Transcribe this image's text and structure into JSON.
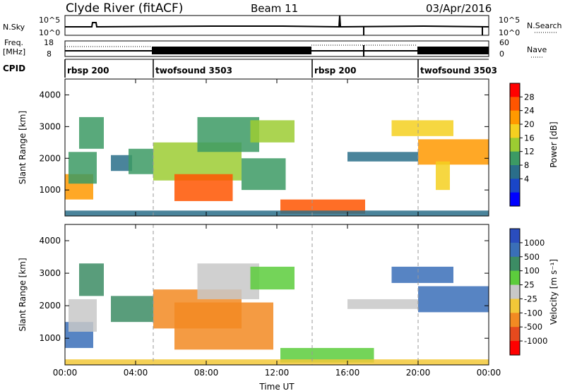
{
  "header": {
    "station": "Clyde River (fitACF)",
    "beam": "Beam 11",
    "date": "03/Apr/2016"
  },
  "strips": {
    "nsky_label": "N.Sky",
    "nsky_ticks": [
      "10^5",
      "10^0"
    ],
    "nsearch_label": "N.Search",
    "nsearch_ticks": [
      "10^5",
      "10^0"
    ],
    "freq_label": "Freq.",
    "freq_unit": "[MHz]",
    "freq_ticks": [
      "18",
      "8"
    ],
    "nave_label": "Nave",
    "nave_ticks": [
      "60",
      "0"
    ],
    "cpid_label": "CPID",
    "cpid_segments": [
      {
        "start_h": 0,
        "end_h": 5,
        "label": "rbsp 200"
      },
      {
        "start_h": 5,
        "end_h": 14,
        "label": "twofsound 3503"
      },
      {
        "start_h": 14,
        "end_h": 20,
        "label": "rbsp 200"
      },
      {
        "start_h": 20,
        "end_h": 24,
        "label": "twofsound 3503"
      }
    ]
  },
  "chart_data": [
    {
      "type": "heatmap",
      "panel": "power",
      "ylabel": "Slant Range [km]",
      "y_ticks": [
        "4000",
        "3000",
        "2000",
        "1000"
      ],
      "ylim": [
        180,
        4500
      ],
      "xlim_h": [
        0,
        24
      ],
      "colorbar_label": "Power [dB]",
      "colorbar_ticks": [
        "28",
        "24",
        "20",
        "16",
        "12",
        "8",
        "4"
      ],
      "colorbar_colors": [
        "#ff0000",
        "#ff5500",
        "#ff9900",
        "#f5d020",
        "#9ccc32",
        "#3c9a64",
        "#2a6e8a",
        "#1a46c8",
        "#0000ff"
      ],
      "grid": "vertical dashed lines at CPID changes",
      "cells": [
        {
          "h0": 0.0,
          "h1": 1.6,
          "r0": 700,
          "r1": 1500,
          "value": 24
        },
        {
          "h0": 0.2,
          "h1": 1.8,
          "r0": 1200,
          "r1": 2200,
          "value": 12
        },
        {
          "h0": 0.8,
          "h1": 2.2,
          "r0": 2300,
          "r1": 3300,
          "value": 10
        },
        {
          "h0": 2.6,
          "h1": 3.8,
          "r0": 1600,
          "r1": 2100,
          "value": 9
        },
        {
          "h0": 3.6,
          "h1": 5.0,
          "r0": 1500,
          "r1": 2300,
          "value": 10
        },
        {
          "h0": 5.0,
          "h1": 10.0,
          "r0": 1300,
          "r1": 2500,
          "value": 14
        },
        {
          "h0": 6.2,
          "h1": 9.5,
          "r0": 650,
          "r1": 1500,
          "value": 26
        },
        {
          "h0": 7.5,
          "h1": 11.0,
          "r0": 2200,
          "r1": 3300,
          "value": 10
        },
        {
          "h0": 10.0,
          "h1": 12.5,
          "r0": 1000,
          "r1": 2000,
          "value": 12
        },
        {
          "h0": 10.5,
          "h1": 13.0,
          "r0": 2500,
          "r1": 3200,
          "value": 14
        },
        {
          "h0": 12.2,
          "h1": 17.0,
          "r0": 250,
          "r1": 700,
          "value": 26
        },
        {
          "h0": 16.0,
          "h1": 20.0,
          "r0": 1900,
          "r1": 2200,
          "value": 6
        },
        {
          "h0": 18.5,
          "h1": 22.0,
          "r0": 2700,
          "r1": 3200,
          "value": 18
        },
        {
          "h0": 20.0,
          "h1": 24.0,
          "r0": 1800,
          "r1": 2600,
          "value": 22
        },
        {
          "h0": 21.0,
          "h1": 21.8,
          "r0": 1000,
          "r1": 1900,
          "value": 18
        },
        {
          "h0": 0.0,
          "h1": 24.0,
          "r0": 180,
          "r1": 350,
          "value": 8
        }
      ]
    },
    {
      "type": "heatmap",
      "panel": "velocity",
      "ylabel": "Slant Range [km]",
      "y_ticks": [
        "4000",
        "3000",
        "2000",
        "1000"
      ],
      "ylim": [
        180,
        4500
      ],
      "xlim_h": [
        0,
        24
      ],
      "x_ticks": [
        "00:00",
        "04:00",
        "08:00",
        "12:00",
        "16:00",
        "20:00",
        "00:00"
      ],
      "xlabel": "Time UT",
      "colorbar_label": "Velocity [m s⁻¹]",
      "colorbar_ticks": [
        "1000",
        "500",
        "100",
        "25",
        "-25",
        "-100",
        "-500",
        "-1000"
      ],
      "colorbar_colors": [
        "#2a4dbe",
        "#3a6fb8",
        "#3c8c64",
        "#5ccc3c",
        "#c8c8c8",
        "#f2c838",
        "#f28a22",
        "#e64a1e",
        "#ff0000"
      ],
      "cells": [
        {
          "h0": 0.0,
          "h1": 1.6,
          "r0": 700,
          "r1": 1500,
          "value": 800
        },
        {
          "h0": 0.2,
          "h1": 1.8,
          "r0": 1200,
          "r1": 2200,
          "value": 0
        },
        {
          "h0": 0.8,
          "h1": 2.2,
          "r0": 2300,
          "r1": 3300,
          "value": 300
        },
        {
          "h0": 2.6,
          "h1": 5.0,
          "r0": 1500,
          "r1": 2300,
          "value": 300
        },
        {
          "h0": 5.0,
          "h1": 10.0,
          "r0": 1300,
          "r1": 2500,
          "value": -300
        },
        {
          "h0": 6.2,
          "h1": 11.8,
          "r0": 650,
          "r1": 2100,
          "value": -300
        },
        {
          "h0": 7.5,
          "h1": 11.0,
          "r0": 2200,
          "r1": 3300,
          "value": 0
        },
        {
          "h0": 10.5,
          "h1": 13.0,
          "r0": 2500,
          "r1": 3200,
          "value": 50
        },
        {
          "h0": 12.2,
          "h1": 17.5,
          "r0": 250,
          "r1": 700,
          "value": 60
        },
        {
          "h0": 16.0,
          "h1": 20.0,
          "r0": 1900,
          "r1": 2200,
          "value": 0
        },
        {
          "h0": 18.5,
          "h1": 22.0,
          "r0": 2700,
          "r1": 3200,
          "value": 700
        },
        {
          "h0": 20.0,
          "h1": 24.0,
          "r0": 1800,
          "r1": 2600,
          "value": 500
        },
        {
          "h0": 0.0,
          "h1": 24.0,
          "r0": 180,
          "r1": 350,
          "value": -50
        }
      ]
    }
  ]
}
